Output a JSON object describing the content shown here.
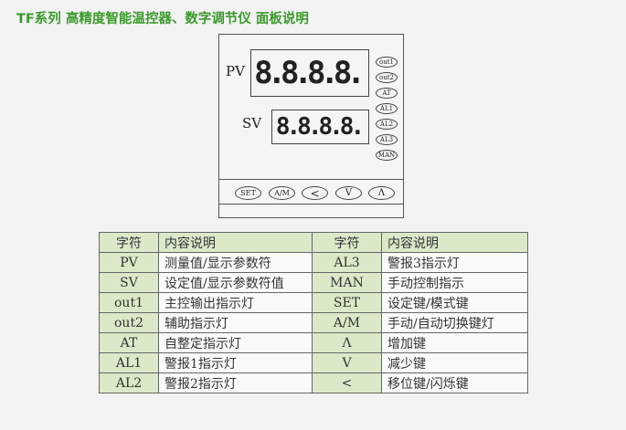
{
  "title": "TF系列 高精度智能温控器、数字调节仪 面板说明",
  "panel": {
    "pv_label": "PV",
    "sv_label": "SV",
    "pv_digits": "8.8.8.8.",
    "sv_digits": "8.8.8.8.",
    "indicators": [
      "out1",
      "out2",
      "AT",
      "AL1",
      "AL2",
      "AL3",
      "MAN"
    ],
    "keys": [
      "SET",
      "A/M",
      "<",
      "V",
      "Λ"
    ]
  },
  "table": {
    "headers": [
      "字符",
      "内容说明",
      "字符",
      "内容说明"
    ],
    "rows": [
      [
        "PV",
        "测量值/显示参数符",
        "AL3",
        "警报3指示灯"
      ],
      [
        "SV",
        "设定值/显示参数符值",
        "MAN",
        "手动控制指示"
      ],
      [
        "out1",
        "主控输出指示灯",
        "SET",
        "设定键/模式键"
      ],
      [
        "out2",
        "辅助指示灯",
        "A/M",
        "手动/自动切换键灯"
      ],
      [
        "AT",
        "自整定指示灯",
        "Λ",
        "增加键"
      ],
      [
        "AL1",
        "警报1指示灯",
        "V",
        "减少键"
      ],
      [
        "AL2",
        "警报2指示灯",
        "<",
        "移位键/闪烁键"
      ]
    ]
  }
}
